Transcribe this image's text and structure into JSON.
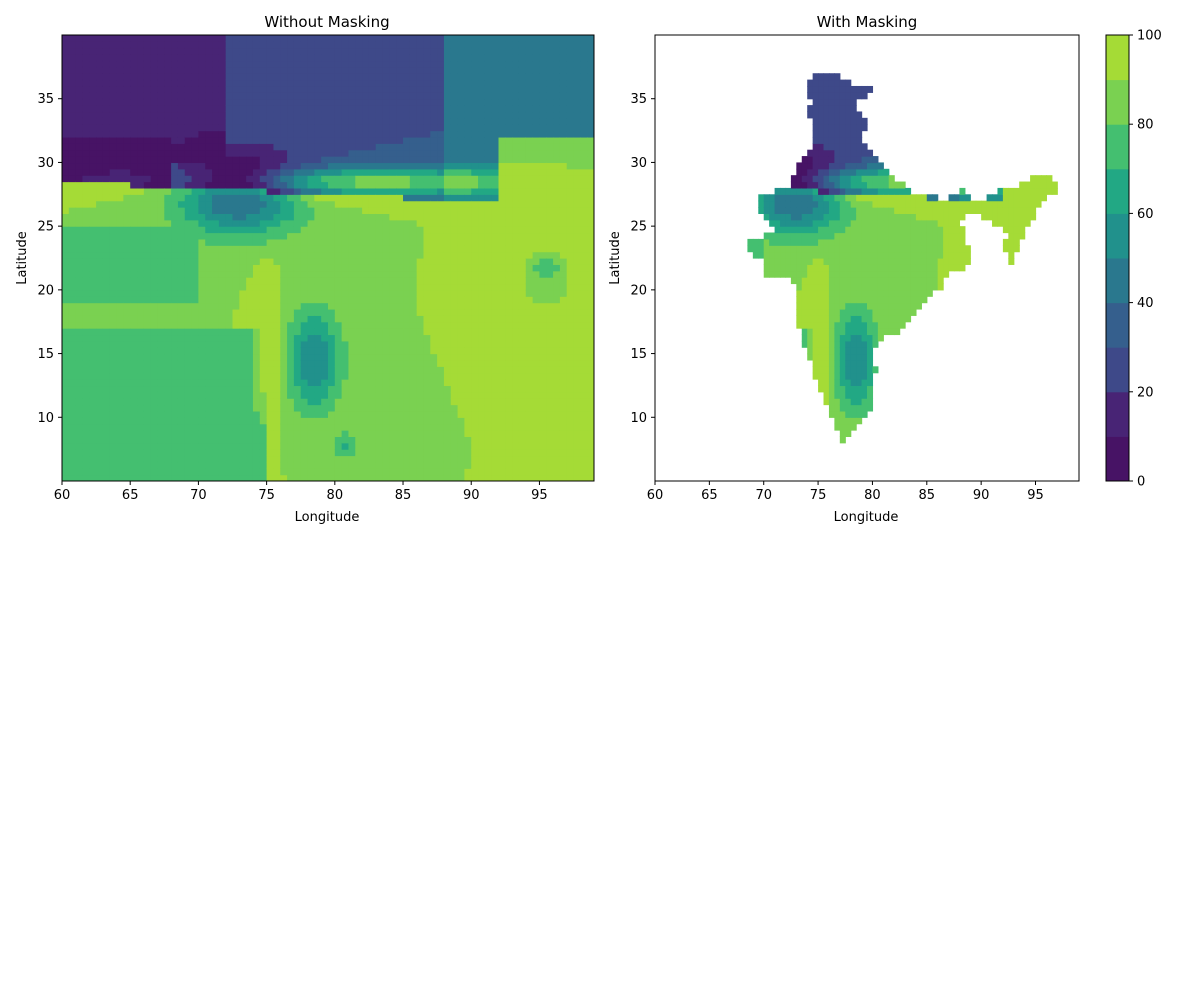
{
  "chart_data": [
    {
      "type": "heatmap",
      "title": "Without Masking",
      "xlabel": "Longitude",
      "ylabel": "Latitude",
      "xlim": [
        60,
        99
      ],
      "ylim": [
        5,
        40
      ],
      "xticks": [
        60,
        65,
        70,
        75,
        80,
        85,
        90,
        95
      ],
      "yticks": [
        10,
        15,
        20,
        25,
        30,
        35
      ],
      "value_range": [
        0,
        100
      ],
      "masked": false
    },
    {
      "type": "heatmap",
      "title": "With Masking",
      "xlabel": "Longitude",
      "ylabel": "Latitude",
      "xlim": [
        60,
        99
      ],
      "ylim": [
        5,
        40
      ],
      "xticks": [
        60,
        65,
        70,
        75,
        80,
        85,
        90,
        95
      ],
      "yticks": [
        10,
        15,
        20,
        25,
        30,
        35
      ],
      "value_range": [
        0,
        100
      ],
      "masked": true
    }
  ],
  "colorbar": {
    "levels": [
      0,
      10,
      20,
      30,
      40,
      50,
      60,
      70,
      80,
      90,
      100
    ],
    "ticks": [
      0,
      20,
      40,
      60,
      80,
      100
    ],
    "colors": [
      "#471365",
      "#482475",
      "#3e4989",
      "#355f8d",
      "#2a788e",
      "#21918c",
      "#22a884",
      "#44bf70",
      "#7ad151",
      "#a5db36",
      "#e0e31f"
    ]
  }
}
